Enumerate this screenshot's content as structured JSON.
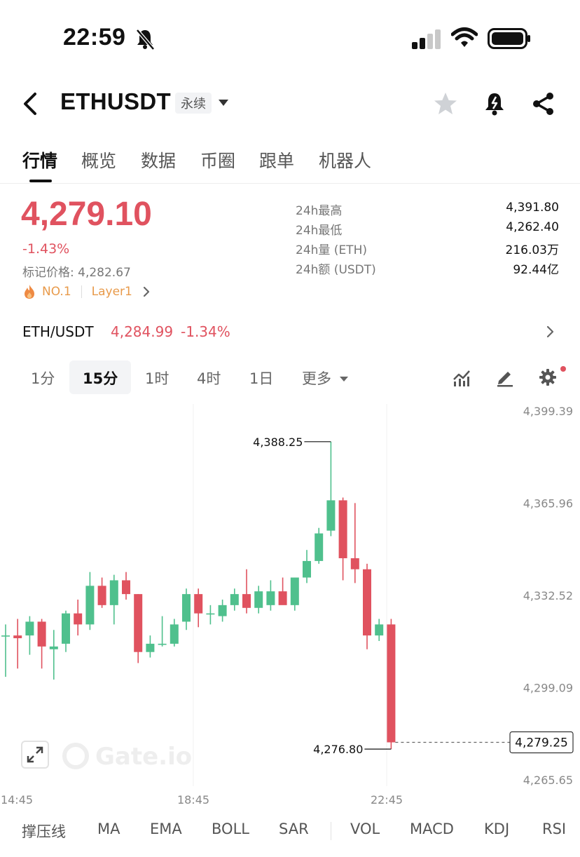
{
  "status": {
    "time": "22:59"
  },
  "header": {
    "symbol": "ETHUSDT",
    "contract_tag": "永续"
  },
  "tabs": [
    {
      "label": "行情"
    },
    {
      "label": "概览"
    },
    {
      "label": "数据"
    },
    {
      "label": "币圈"
    },
    {
      "label": "跟单"
    },
    {
      "label": "机器人"
    }
  ],
  "price": {
    "last": "4,279.10",
    "change_pct": "-1.43%",
    "mark_label": "标记价格:",
    "mark_value": "4,282.67",
    "rank": "NO.1",
    "category": "Layer1"
  },
  "stats": [
    {
      "label": "24h最高",
      "value": "4,391.80"
    },
    {
      "label": "24h最低",
      "value": "4,262.40"
    },
    {
      "label": "24h量 (ETH)",
      "value": "216.03万"
    },
    {
      "label": "24h额 (USDT)",
      "value": "92.44亿"
    }
  ],
  "spot": {
    "pair": "ETH/USDT",
    "price": "4,284.99",
    "change": "-1.34%"
  },
  "intervals": [
    {
      "label": "1分"
    },
    {
      "label": "15分"
    },
    {
      "label": "1时"
    },
    {
      "label": "4时"
    },
    {
      "label": "1日"
    },
    {
      "label": "更多"
    }
  ],
  "indicators": [
    {
      "label": "撑压线"
    },
    {
      "label": "MA"
    },
    {
      "label": "EMA"
    },
    {
      "label": "BOLL"
    },
    {
      "label": "SAR"
    },
    {
      "label": "VOL"
    },
    {
      "label": "MACD"
    },
    {
      "label": "KDJ"
    },
    {
      "label": "RSI"
    }
  ],
  "colors": {
    "up": "#4fc08d",
    "down": "#e0525f",
    "accent_orange": "#e89a4a"
  },
  "chart_data": {
    "type": "candlestick",
    "y_ticks": [
      "4,399.39",
      "4,365.96",
      "4,332.52",
      "4,299.09",
      "4,265.65"
    ],
    "y_tick_values": [
      4399.39,
      4365.96,
      4332.52,
      4299.09,
      4265.65
    ],
    "x_ticks": [
      "14:45",
      "18:45",
      "22:45"
    ],
    "high_label": "4,388.25",
    "low_label": "4,276.80",
    "current_price_label": "4,279.25",
    "ylim": [
      4262.0,
      4402.0
    ],
    "candles": [
      {
        "o": 4318.0,
        "h": 4322.0,
        "l": 4303.0,
        "c": 4318.0
      },
      {
        "o": 4318.0,
        "h": 4324.0,
        "l": 4306.0,
        "c": 4317.0
      },
      {
        "o": 4318.0,
        "h": 4325.0,
        "l": 4311.0,
        "c": 4323.0
      },
      {
        "o": 4323.0,
        "h": 4324.0,
        "l": 4306.0,
        "c": 4314.0
      },
      {
        "o": 4313.0,
        "h": 4320.0,
        "l": 4302.0,
        "c": 4314.0
      },
      {
        "o": 4315.0,
        "h": 4327.0,
        "l": 4312.0,
        "c": 4326.0
      },
      {
        "o": 4326.0,
        "h": 4331.0,
        "l": 4318.0,
        "c": 4322.0
      },
      {
        "o": 4322.0,
        "h": 4341.0,
        "l": 4320.0,
        "c": 4336.0
      },
      {
        "o": 4336.0,
        "h": 4339.0,
        "l": 4328.0,
        "c": 4329.0
      },
      {
        "o": 4329.0,
        "h": 4340.0,
        "l": 4322.0,
        "c": 4338.0
      },
      {
        "o": 4338.0,
        "h": 4341.0,
        "l": 4331.0,
        "c": 4333.0
      },
      {
        "o": 4333.0,
        "h": 4333.0,
        "l": 4308.0,
        "c": 4312.0
      },
      {
        "o": 4312.0,
        "h": 4318.0,
        "l": 4310.0,
        "c": 4315.0
      },
      {
        "o": 4315.0,
        "h": 4325.0,
        "l": 4314.0,
        "c": 4315.0
      },
      {
        "o": 4315.0,
        "h": 4324.0,
        "l": 4314.0,
        "c": 4322.0
      },
      {
        "o": 4323.0,
        "h": 4335.0,
        "l": 4320.0,
        "c": 4333.0
      },
      {
        "o": 4333.0,
        "h": 4335.0,
        "l": 4321.0,
        "c": 4326.0
      },
      {
        "o": 4326.0,
        "h": 4329.0,
        "l": 4322.0,
        "c": 4326.0
      },
      {
        "o": 4325.0,
        "h": 4331.0,
        "l": 4323.0,
        "c": 4329.0
      },
      {
        "o": 4329.0,
        "h": 4335.0,
        "l": 4327.0,
        "c": 4333.0
      },
      {
        "o": 4333.0,
        "h": 4342.0,
        "l": 4326.0,
        "c": 4328.0
      },
      {
        "o": 4328.0,
        "h": 4336.0,
        "l": 4326.0,
        "c": 4334.0
      },
      {
        "o": 4329.0,
        "h": 4338.0,
        "l": 4327.0,
        "c": 4334.0
      },
      {
        "o": 4334.0,
        "h": 4339.0,
        "l": 4330.0,
        "c": 4329.0
      },
      {
        "o": 4329.0,
        "h": 4339.0,
        "l": 4327.0,
        "c": 4339.0
      },
      {
        "o": 4339.0,
        "h": 4349.0,
        "l": 4337.0,
        "c": 4345.0
      },
      {
        "o": 4345.0,
        "h": 4357.0,
        "l": 4344.0,
        "c": 4355.0
      },
      {
        "o": 4356.0,
        "h": 4388.25,
        "l": 4354.0,
        "c": 4367.0
      },
      {
        "o": 4367.0,
        "h": 4368.0,
        "l": 4338.0,
        "c": 4346.0
      },
      {
        "o": 4346.0,
        "h": 4366.0,
        "l": 4337.0,
        "c": 4342.0
      },
      {
        "o": 4342.0,
        "h": 4344.0,
        "l": 4313.0,
        "c": 4318.0
      },
      {
        "o": 4318.0,
        "h": 4324.0,
        "l": 4316.0,
        "c": 4322.0
      },
      {
        "o": 4322.0,
        "h": 4324.0,
        "l": 4276.8,
        "c": 4279.25
      }
    ]
  }
}
